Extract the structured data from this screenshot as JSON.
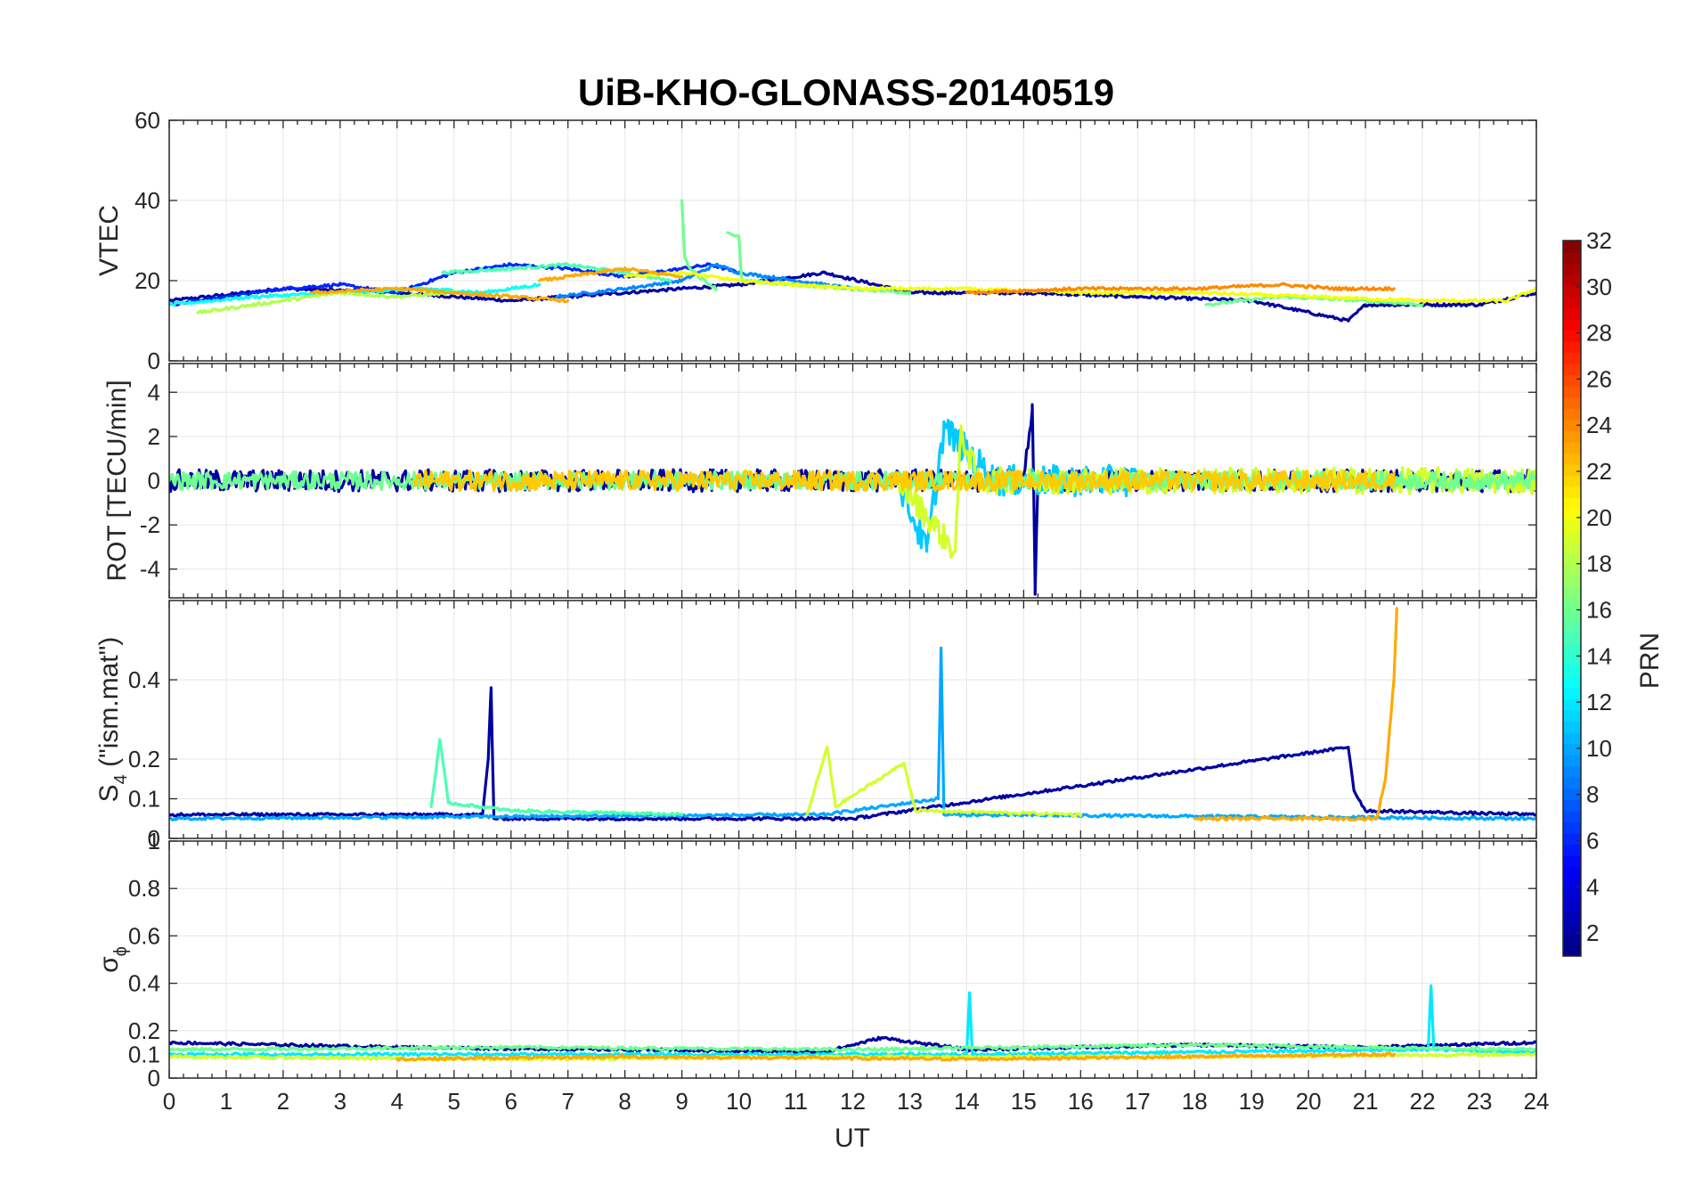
{
  "title": "UiB-KHO-GLONASS-20140519",
  "xlabel": "UT",
  "x_ticks": [
    "0",
    "1",
    "2",
    "3",
    "4",
    "5",
    "6",
    "7",
    "8",
    "9",
    "10",
    "11",
    "12",
    "13",
    "14",
    "15",
    "16",
    "17",
    "18",
    "19",
    "20",
    "21",
    "22",
    "23",
    "24"
  ],
  "colorbar": {
    "label": "PRN",
    "colormap": "jet",
    "range": [
      1,
      32
    ],
    "ticks": [
      "2",
      "4",
      "6",
      "8",
      "10",
      "12",
      "14",
      "16",
      "18",
      "20",
      "22",
      "24",
      "26",
      "28",
      "30",
      "32"
    ]
  },
  "panels": [
    {
      "ylabel": "VTEC",
      "ylim": [
        0,
        60
      ],
      "yticks": [
        "0",
        "20",
        "40",
        "60"
      ]
    },
    {
      "ylabel": "ROT [TECU/min]",
      "ylim": [
        -5.3,
        5.3
      ],
      "yticks": [
        "-4",
        "-2",
        "0",
        "2",
        "4"
      ]
    },
    {
      "ylabel_main": "S",
      "ylabel_sub": "4",
      "ylabel_rest": " (\"ism.mat\")",
      "ylim": [
        0,
        0.6
      ],
      "yticks": [
        "0",
        "0.1",
        "0.2",
        "0.4"
      ]
    },
    {
      "ylabel_main": "σ",
      "ylabel_sub": "ϕ",
      "ylim": [
        0,
        1
      ],
      "yticks": [
        "0",
        "0.1",
        "0.2",
        "0.4",
        "0.6",
        "0.8",
        "1"
      ]
    }
  ],
  "chart_data": [
    {
      "type": "line",
      "ylabel": "VTEC",
      "xlabel": "UT",
      "xlim": [
        0,
        24
      ],
      "ylim": [
        0,
        60
      ],
      "series": [
        {
          "prn": 2,
          "x": [
            0,
            2,
            4,
            6,
            8,
            10,
            11.5,
            13,
            15,
            17,
            19,
            20.7,
            21,
            22,
            23,
            24
          ],
          "y": [
            15,
            18,
            17,
            15,
            17,
            19,
            22,
            17,
            17,
            16,
            15,
            10,
            14,
            14,
            14,
            17
          ]
        },
        {
          "prn": 6,
          "x": [
            0,
            2,
            3,
            4,
            5,
            6,
            7,
            8,
            9,
            9.5,
            10
          ],
          "y": [
            14,
            18,
            19,
            17,
            22,
            24,
            23,
            21,
            23,
            24,
            22
          ]
        },
        {
          "prn": 9,
          "x": [
            6.8,
            8,
            9,
            9.6,
            10,
            12
          ],
          "y": [
            16,
            18,
            20,
            24,
            22,
            18
          ]
        },
        {
          "prn": 13,
          "x": [
            0,
            1.5,
            3,
            4.5,
            5.5,
            6.5
          ],
          "y": [
            14,
            16,
            17,
            18,
            17,
            19
          ]
        },
        {
          "prn": 15,
          "x": [
            4.8,
            6,
            7,
            8,
            8.8
          ],
          "y": [
            22,
            23,
            24,
            22,
            20
          ]
        },
        {
          "prn": 16,
          "x": [
            9.0,
            9.05,
            9.1,
            9.3,
            9.6
          ],
          "y": [
            40,
            26,
            24,
            21,
            18
          ]
        },
        {
          "prn": 16,
          "x": [
            9.8,
            10,
            10.05,
            11,
            13
          ],
          "y": [
            32,
            31,
            20,
            19,
            17
          ]
        },
        {
          "prn": 16,
          "x": [
            18.2,
            19.5,
            21,
            22
          ],
          "y": [
            14,
            16,
            15,
            14
          ]
        },
        {
          "prn": 18,
          "x": [
            0.5,
            1.5,
            3,
            4,
            5
          ],
          "y": [
            12,
            14,
            17,
            16,
            17
          ]
        },
        {
          "prn": 20,
          "x": [
            8,
            9,
            10,
            11,
            12,
            14,
            16,
            18,
            20,
            22,
            23.5,
            24
          ],
          "y": [
            21,
            22,
            20,
            19,
            18,
            18,
            17,
            17,
            16,
            15,
            15,
            18
          ]
        },
        {
          "prn": 23,
          "x": [
            2.5,
            4,
            5,
            6,
            7
          ],
          "y": [
            17,
            18,
            17,
            16,
            15
          ]
        },
        {
          "prn": 23,
          "x": [
            6.5,
            7.5,
            8,
            9
          ],
          "y": [
            20,
            22,
            23,
            21
          ]
        },
        {
          "prn": 24,
          "x": [
            14,
            16,
            18,
            19.5,
            20.5,
            21.5
          ],
          "y": [
            17,
            18,
            18,
            19,
            18,
            18
          ]
        }
      ]
    },
    {
      "type": "line",
      "ylabel": "ROT [TECU/min]",
      "xlabel": "UT",
      "xlim": [
        0,
        24
      ],
      "ylim": [
        -5.3,
        5.3
      ],
      "series": [
        {
          "prn": 2,
          "x": [
            0,
            4.8,
            11,
            13,
            15,
            15.15,
            15.2,
            15.25,
            16.5,
            20.5,
            21,
            24
          ],
          "y": [
            0,
            0,
            0,
            0,
            0,
            3.2,
            -4.7,
            0,
            0,
            0,
            0,
            0
          ],
          "noise": 0.5
        },
        {
          "prn": 11,
          "x": [
            12.8,
            13.3,
            13.6,
            14.5,
            17
          ],
          "y": [
            0,
            -3.2,
            2.4,
            0,
            0
          ],
          "noise": 0.7
        },
        {
          "prn": 19,
          "x": [
            12.8,
            13.8,
            13.9,
            14.2,
            16.5,
            24
          ],
          "y": [
            0,
            -3.2,
            2.2,
            0,
            0,
            0
          ],
          "noise": 0.6
        },
        {
          "prn": 16,
          "x": [
            0,
            12,
            24
          ],
          "y": [
            0,
            0,
            0
          ],
          "noise": 0.4
        },
        {
          "prn": 22,
          "x": [
            4.3,
            9,
            21.5
          ],
          "y": [
            0,
            0,
            0
          ],
          "noise": 0.45
        }
      ]
    },
    {
      "type": "line",
      "ylabel": "S4 (\"ism.mat\")",
      "xlabel": "UT",
      "xlim": [
        0,
        24
      ],
      "ylim": [
        0,
        0.6
      ],
      "series": [
        {
          "prn": 2,
          "x": [
            0,
            5.5,
            5.6,
            5.65,
            5.7,
            12,
            20.7,
            20.8,
            21,
            24
          ],
          "y": [
            0.06,
            0.06,
            0.2,
            0.38,
            0.05,
            0.05,
            0.23,
            0.12,
            0.07,
            0.06
          ]
        },
        {
          "prn": 10,
          "x": [
            0,
            11.5,
            13.5,
            13.55,
            13.6,
            24
          ],
          "y": [
            0.05,
            0.06,
            0.1,
            0.48,
            0.06,
            0.05
          ]
        },
        {
          "prn": 15,
          "x": [
            4.6,
            4.75,
            4.9,
            6,
            9
          ],
          "y": [
            0.08,
            0.25,
            0.09,
            0.07,
            0.06
          ]
        },
        {
          "prn": 19,
          "x": [
            11.2,
            11.55,
            11.7,
            12.9,
            13.1,
            16
          ],
          "y": [
            0.06,
            0.23,
            0.08,
            0.19,
            0.07,
            0.06
          ]
        },
        {
          "prn": 23,
          "x": [
            18,
            21.2,
            21.35,
            21.5,
            21.55
          ],
          "y": [
            0.05,
            0.05,
            0.15,
            0.4,
            0.58
          ]
        }
      ]
    },
    {
      "type": "line",
      "ylabel": "σϕ",
      "xlabel": "UT",
      "xlim": [
        0,
        24
      ],
      "ylim": [
        0,
        1
      ],
      "series": [
        {
          "prn": 2,
          "x": [
            0,
            4,
            8,
            11.5,
            12.5,
            14,
            18,
            21,
            24
          ],
          "y": [
            0.15,
            0.13,
            0.12,
            0.11,
            0.17,
            0.12,
            0.14,
            0.13,
            0.15
          ]
        },
        {
          "prn": 12,
          "x": [
            0,
            14,
            14.05,
            14.1,
            22.1,
            22.15,
            22.2,
            24
          ],
          "y": [
            0.1,
            0.1,
            0.36,
            0.1,
            0.12,
            0.39,
            0.12,
            0.11
          ]
        },
        {
          "prn": 16,
          "x": [
            0,
            6,
            12,
            18,
            24
          ],
          "y": [
            0.12,
            0.13,
            0.12,
            0.14,
            0.12
          ]
        },
        {
          "prn": 19,
          "x": [
            0,
            6,
            12,
            18,
            24
          ],
          "y": [
            0.09,
            0.08,
            0.09,
            0.09,
            0.1
          ]
        },
        {
          "prn": 23,
          "x": [
            4,
            8,
            14,
            18,
            21.5
          ],
          "y": [
            0.08,
            0.09,
            0.08,
            0.09,
            0.1
          ]
        }
      ]
    }
  ]
}
